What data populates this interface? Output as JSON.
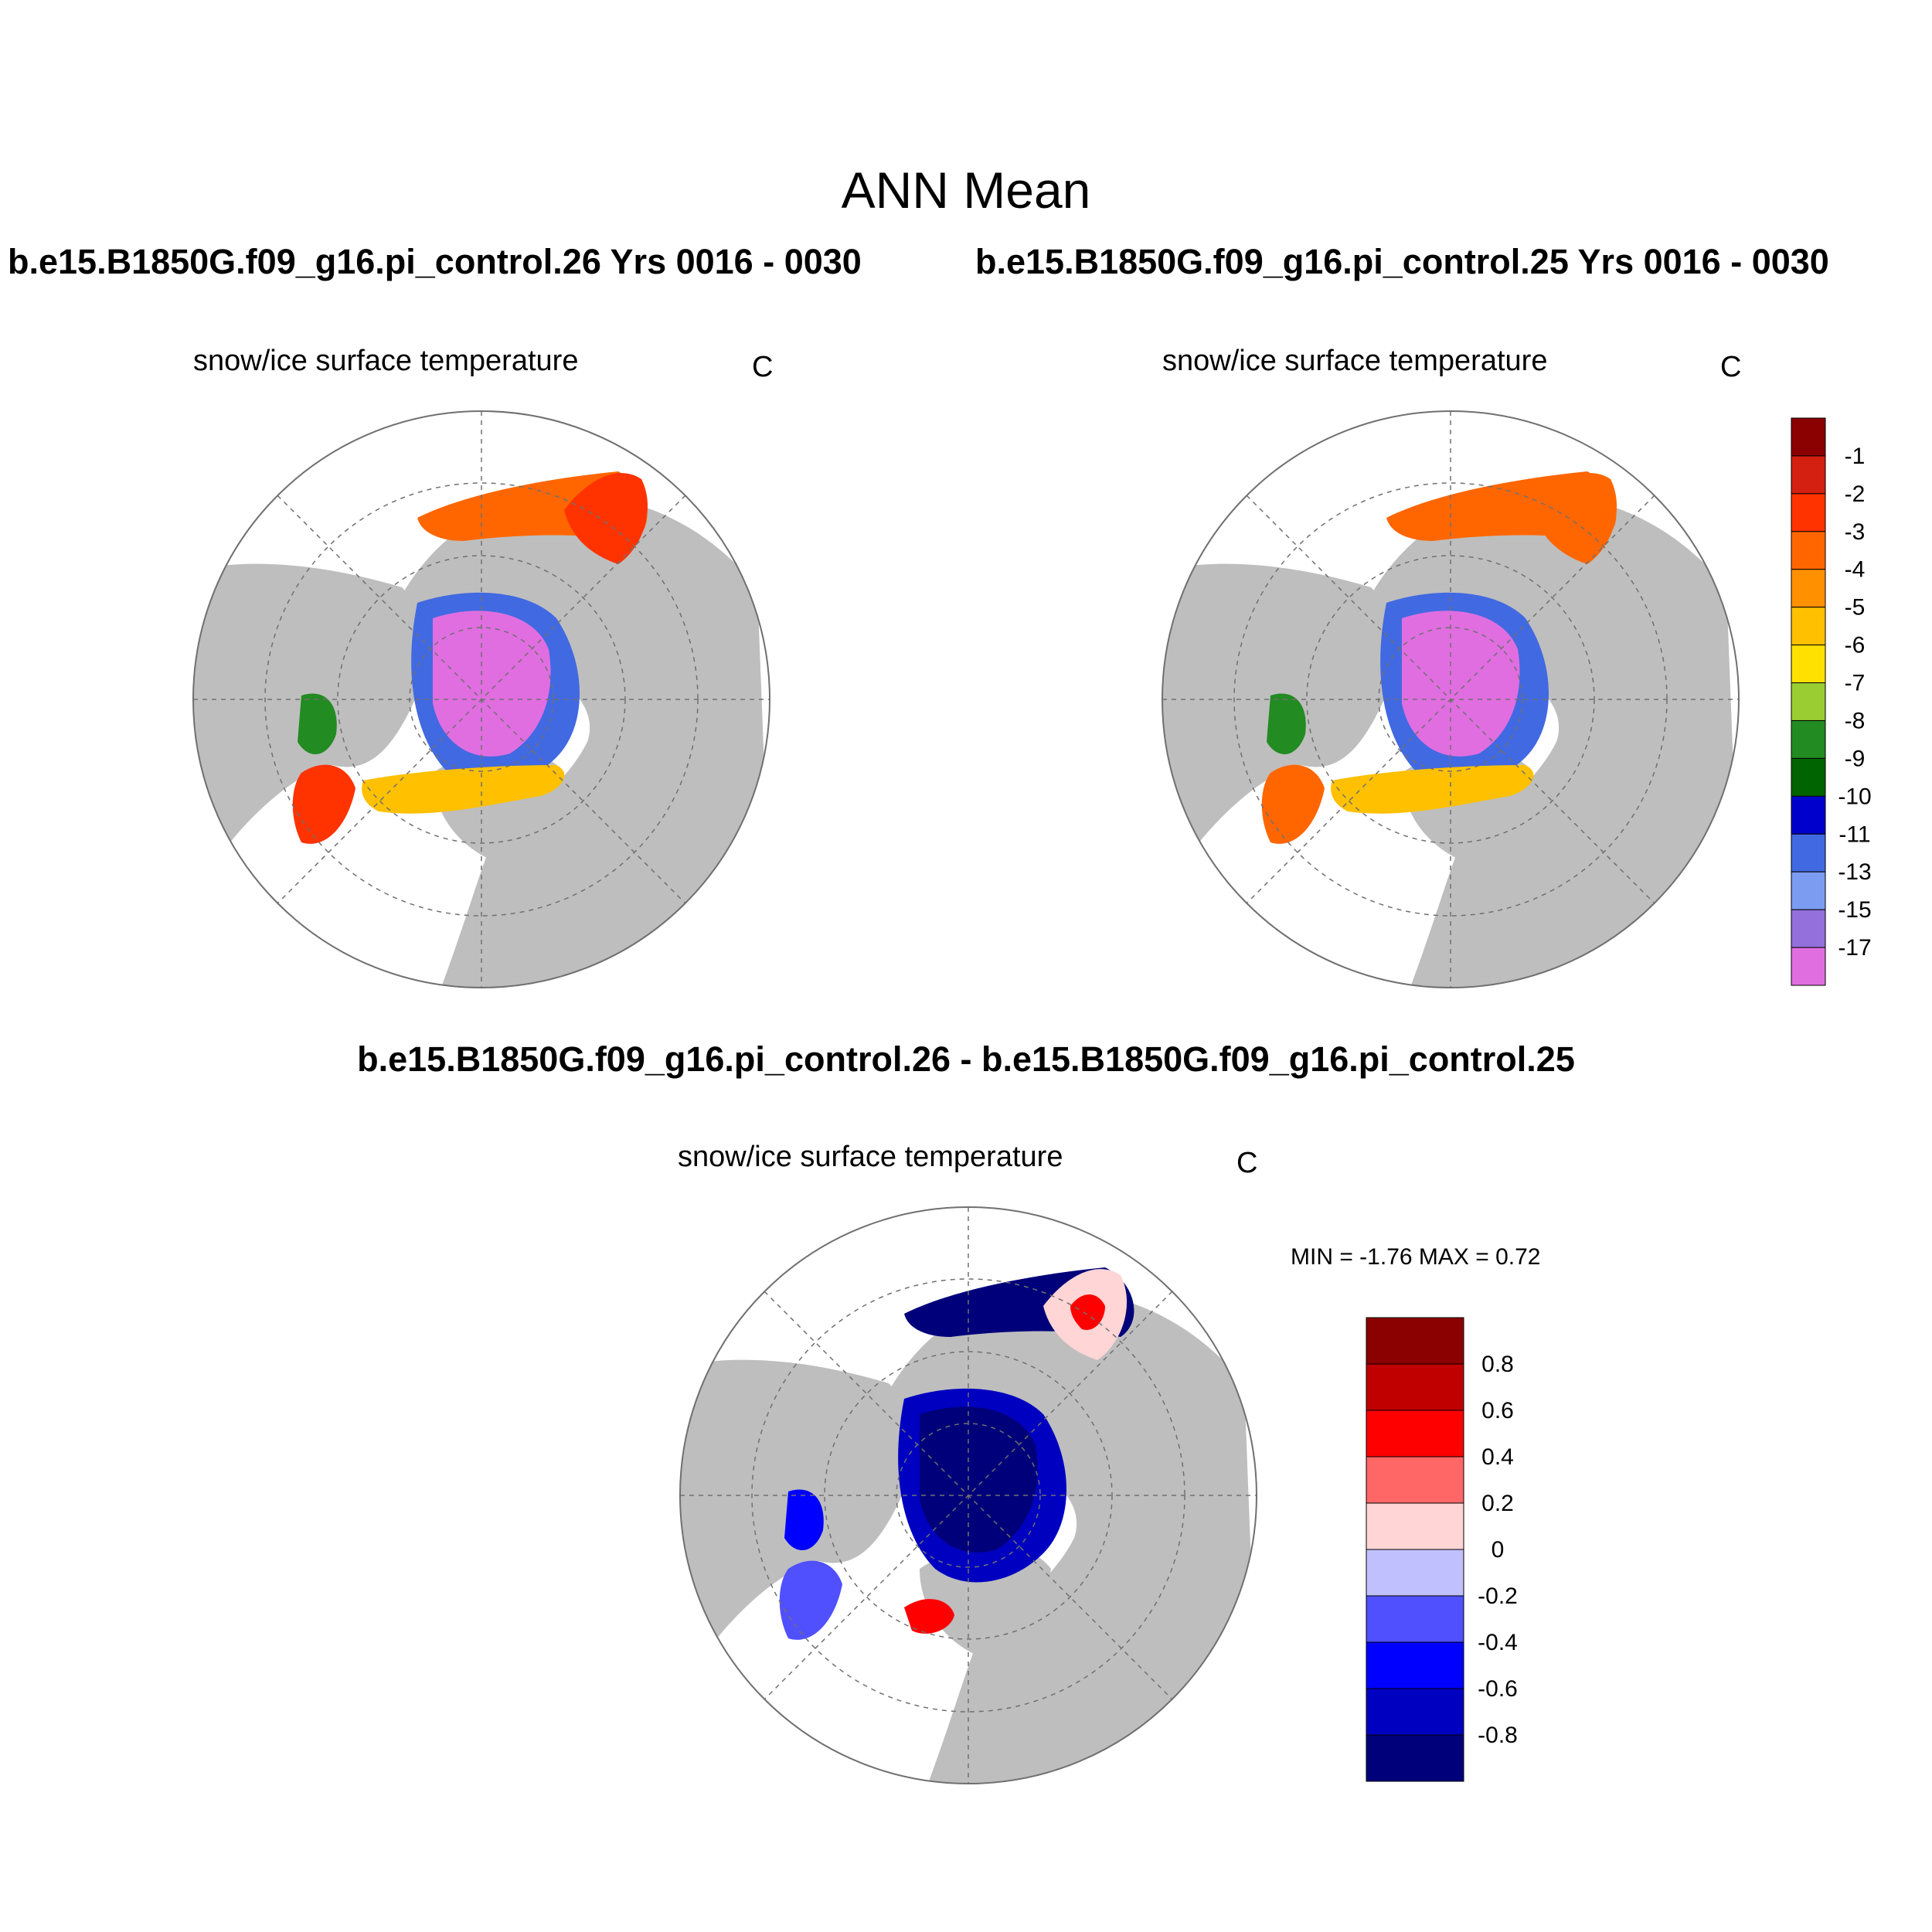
{
  "title": "ANN Mean",
  "case_titles": {
    "left": "b.e15.B1850G.f09_g16.pi_control.26  Yrs 0016 - 0030",
    "right": "b.e15.B1850G.f09_g16.pi_control.25  Yrs 0016 - 0030"
  },
  "diff_title": "b.e15.B1850G.f09_g16.pi_control.26 - b.e15.B1850G.f09_g16.pi_control.25",
  "panels": [
    {
      "variable": "snow/ice surface temperature",
      "units": "C"
    },
    {
      "variable": "snow/ice surface temperature",
      "units": "C"
    },
    {
      "variable": "snow/ice surface temperature",
      "units": "C"
    }
  ],
  "diff_stats": {
    "text": "MIN =  -1.76 MAX =   0.72",
    "min": -1.76,
    "max": 0.72
  },
  "colorbars": {
    "abs": {
      "labels": [
        "-1",
        "-2",
        "-3",
        "-4",
        "-5",
        "-6",
        "-7",
        "-8",
        "-9",
        "-10",
        "-11",
        "-13",
        "-15",
        "-17"
      ],
      "colors": [
        "#8b0000",
        "#d42010",
        "#ff3300",
        "#ff6600",
        "#ff9000",
        "#ffc000",
        "#ffe000",
        "#9acd32",
        "#228b22",
        "#006400",
        "#0000cd",
        "#4169e1",
        "#7b9cf0",
        "#9370db",
        "#e06ee0"
      ]
    },
    "diff": {
      "labels": [
        "0.8",
        "0.6",
        "0.4",
        "0.2",
        "0",
        "-0.2",
        "-0.4",
        "-0.6",
        "-0.8"
      ],
      "colors": [
        "#8b0000",
        "#c00000",
        "#ff0000",
        "#ff6666",
        "#ffd5d5",
        "#c0c0ff",
        "#5050ff",
        "#0000ff",
        "#0000c0",
        "#00007a"
      ]
    }
  },
  "map_colors": {
    "land": "#bebebe",
    "ocean": "#ffffff",
    "grid": "#707070"
  }
}
